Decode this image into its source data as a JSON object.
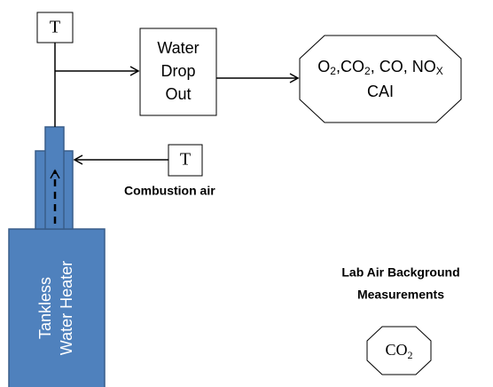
{
  "flue_sensor": "T",
  "water_drop_out": [
    "Water",
    "Drop",
    "Out"
  ],
  "analyzer": {
    "lines": [
      [
        {
          "text": "O"
        },
        {
          "text": "2",
          "sub": true
        },
        {
          "text": ",CO"
        },
        {
          "text": "2",
          "sub": true
        },
        {
          "text": ", CO, NO"
        },
        {
          "text": "X",
          "sub": true
        }
      ],
      [
        {
          "text": "CAI"
        }
      ]
    ]
  },
  "air_sensor": "T",
  "combustion_air": "Combustion air",
  "heater": [
    "Tankless",
    "Water Heater"
  ],
  "background": {
    "title": [
      "Lab Air Background",
      "Measurements"
    ],
    "analyzer": [
      {
        "text": "CO"
      },
      {
        "text": "2",
        "sub": true
      }
    ]
  }
}
